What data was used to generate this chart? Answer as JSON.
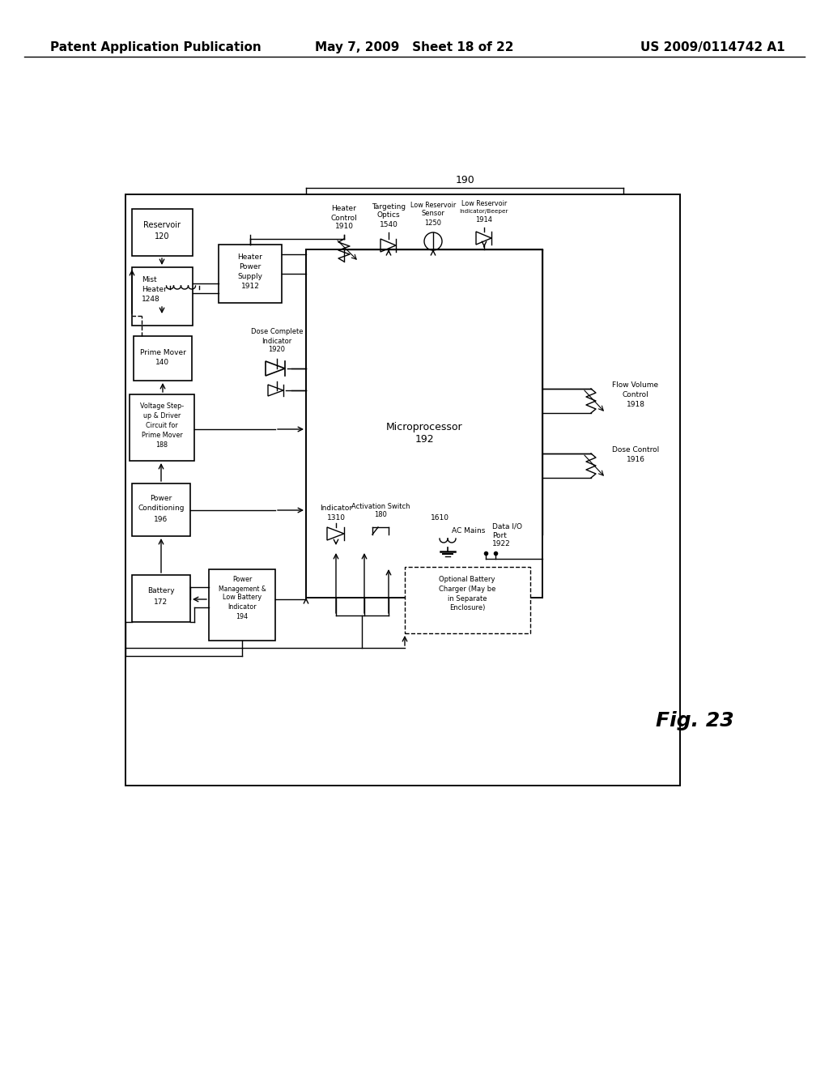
{
  "bg_color": "#ffffff",
  "text_color": "#000000",
  "header_left": "Patent Application Publication",
  "header_center": "May 7, 2009   Sheet 18 of 22",
  "header_right": "US 2009/0114742 A1",
  "fig_label": "Fig. 23",
  "title_fontsize": 11
}
